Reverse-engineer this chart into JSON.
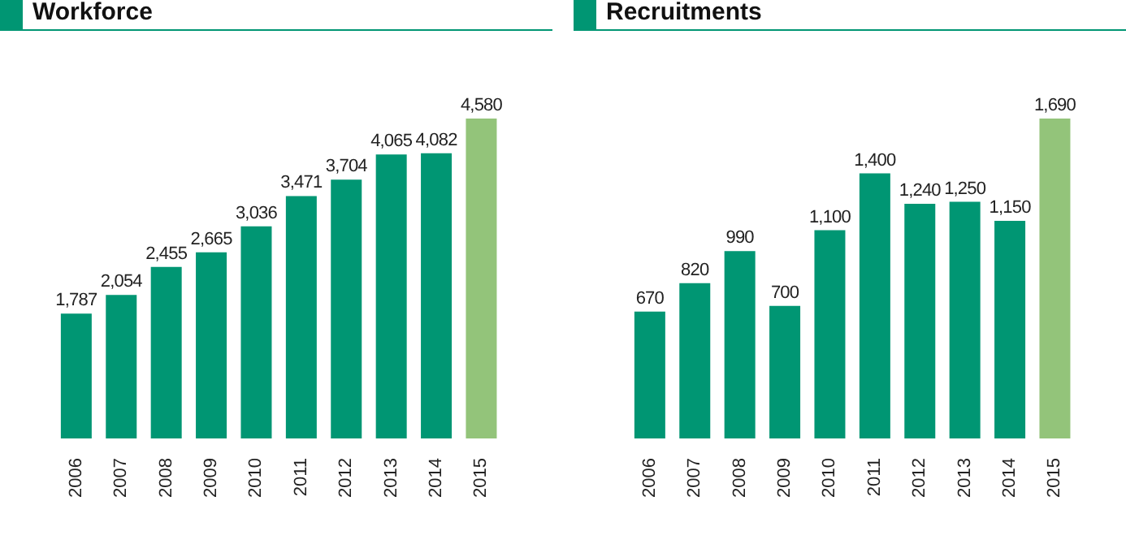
{
  "chart_data": [
    {
      "type": "bar",
      "title": "Workforce",
      "categories": [
        "2006",
        "2007",
        "2008",
        "2009",
        "2010",
        "2011",
        "2012",
        "2013",
        "2014",
        "2015"
      ],
      "values": [
        1787,
        2054,
        2455,
        2665,
        3036,
        3471,
        3704,
        4065,
        4082,
        4580
      ],
      "value_labels": [
        "1,787",
        "2,054",
        "2,455",
        "2,665",
        "3,036",
        "3,471",
        "3,704",
        "4,065",
        "4,082",
        "4,580"
      ],
      "colors": [
        "#009673",
        "#009673",
        "#009673",
        "#009673",
        "#009673",
        "#009673",
        "#009673",
        "#009673",
        "#009673",
        "#93c47a"
      ]
    },
    {
      "type": "bar",
      "title": "Recruitments",
      "categories": [
        "2006",
        "2007",
        "2008",
        "2009",
        "2010",
        "2011",
        "2012",
        "2013",
        "2014",
        "2015"
      ],
      "values": [
        670,
        820,
        990,
        700,
        1100,
        1400,
        1240,
        1250,
        1150,
        1690
      ],
      "value_labels": [
        "670",
        "820",
        "990",
        "700",
        "1,100",
        "1,400",
        "1,240",
        "1,250",
        "1,150",
        "1,690"
      ],
      "colors": [
        "#009673",
        "#009673",
        "#009673",
        "#009673",
        "#009673",
        "#009673",
        "#009673",
        "#009673",
        "#009673",
        "#93c47a"
      ]
    }
  ]
}
